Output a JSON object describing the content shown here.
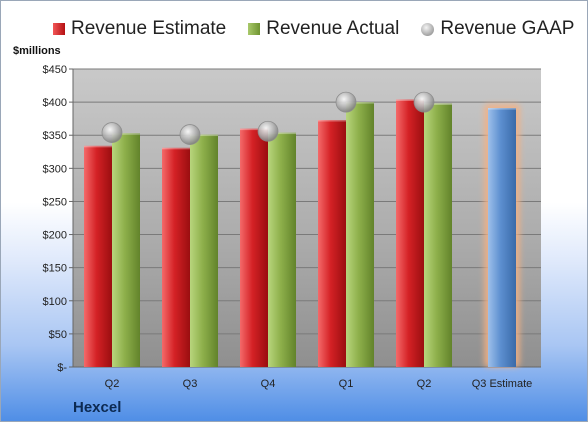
{
  "chart_data": {
    "type": "bar",
    "ylabel": "$millions",
    "company": "Hexcel",
    "categories": [
      "Q2",
      "Q3",
      "Q4",
      "Q1",
      "Q2",
      "Q3 Estimate"
    ],
    "ylim": [
      0,
      450
    ],
    "yticks": [
      0,
      50,
      100,
      150,
      200,
      250,
      300,
      350,
      400,
      450
    ],
    "ytick_labels": [
      "$-",
      "$50",
      "$100",
      "$150",
      "$200",
      "$250",
      "$300",
      "$350",
      "$400",
      "$450"
    ],
    "grid": true,
    "legend_position": "top",
    "series": [
      {
        "name": "Revenue Estimate",
        "type": "bar",
        "color": "#c0161a",
        "values": [
          334,
          331,
          360,
          373,
          404,
          null
        ]
      },
      {
        "name": "Revenue Actual",
        "type": "bar",
        "color": "#7fa23d",
        "values": [
          353,
          351,
          354,
          400,
          398,
          null
        ]
      },
      {
        "name": "Revenue GAAP",
        "type": "marker",
        "color": "#a0a0a0",
        "values": [
          354,
          351,
          356,
          400,
          400,
          null
        ]
      },
      {
        "name": "Q3 Estimate",
        "type": "bar",
        "color": "#4f86c6",
        "highlight": "#f4b183",
        "values": [
          null,
          null,
          null,
          null,
          null,
          391
        ]
      }
    ]
  }
}
